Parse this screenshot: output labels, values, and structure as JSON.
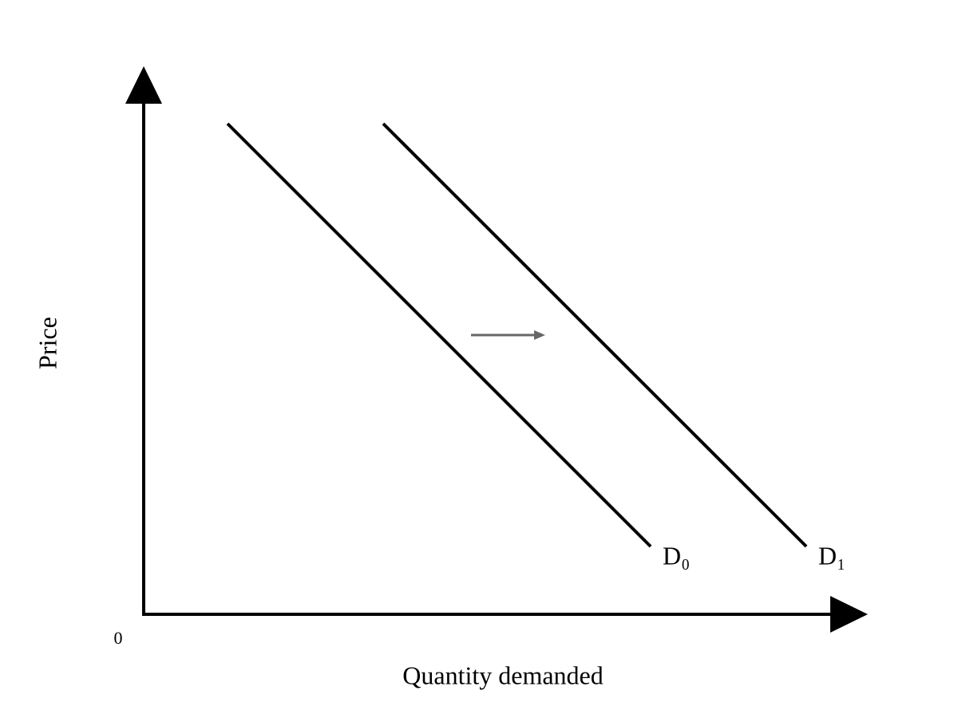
{
  "axes": {
    "y_label": "Price",
    "x_label": "Quantity demanded",
    "origin": "0"
  },
  "curves": [
    {
      "label": "D₀"
    },
    {
      "label": "D₁"
    }
  ]
}
